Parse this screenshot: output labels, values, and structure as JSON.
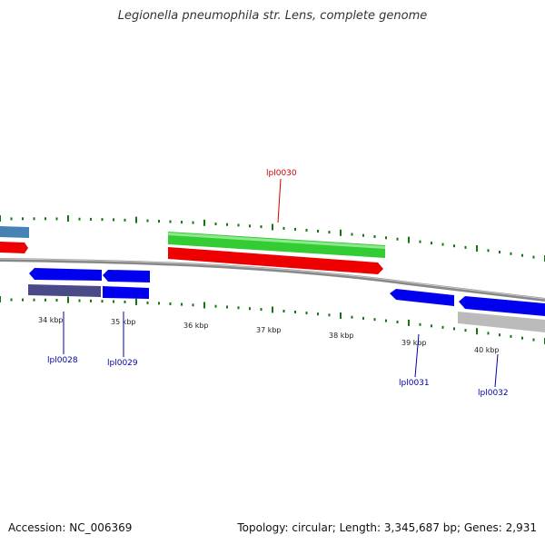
{
  "title": "Legionella pneumophila str. Lens, complete genome",
  "footer": {
    "accession": "Accession: NC_006369",
    "summary": "Topology: circular; Length: 3,345,687 bp; Genes: 2,931"
  },
  "ticks": [
    "34 kbp",
    "35 kbp",
    "36 kbp",
    "37 kbp",
    "38 kbp",
    "39 kbp",
    "40 kbp"
  ],
  "gene_labels": [
    {
      "name": "lpl0028",
      "color": "#0000aa"
    },
    {
      "name": "lpl0029",
      "color": "#0000aa"
    },
    {
      "name": "lpl0030",
      "color": "#cc0000"
    },
    {
      "name": "lpl0031",
      "color": "#0000aa"
    },
    {
      "name": "lpl0032",
      "color": "#0000aa"
    }
  ],
  "colors": {
    "forward_cds": "#33cc33",
    "reverse_cds_red": "#ee0000",
    "reverse_cds_blue": "#0000ee",
    "other_feature": "#4a4a88",
    "steelblue_feature": "#4682b4",
    "grey_feature": "#bbbbbb",
    "backbone": "#888888",
    "tick": "#117711"
  }
}
